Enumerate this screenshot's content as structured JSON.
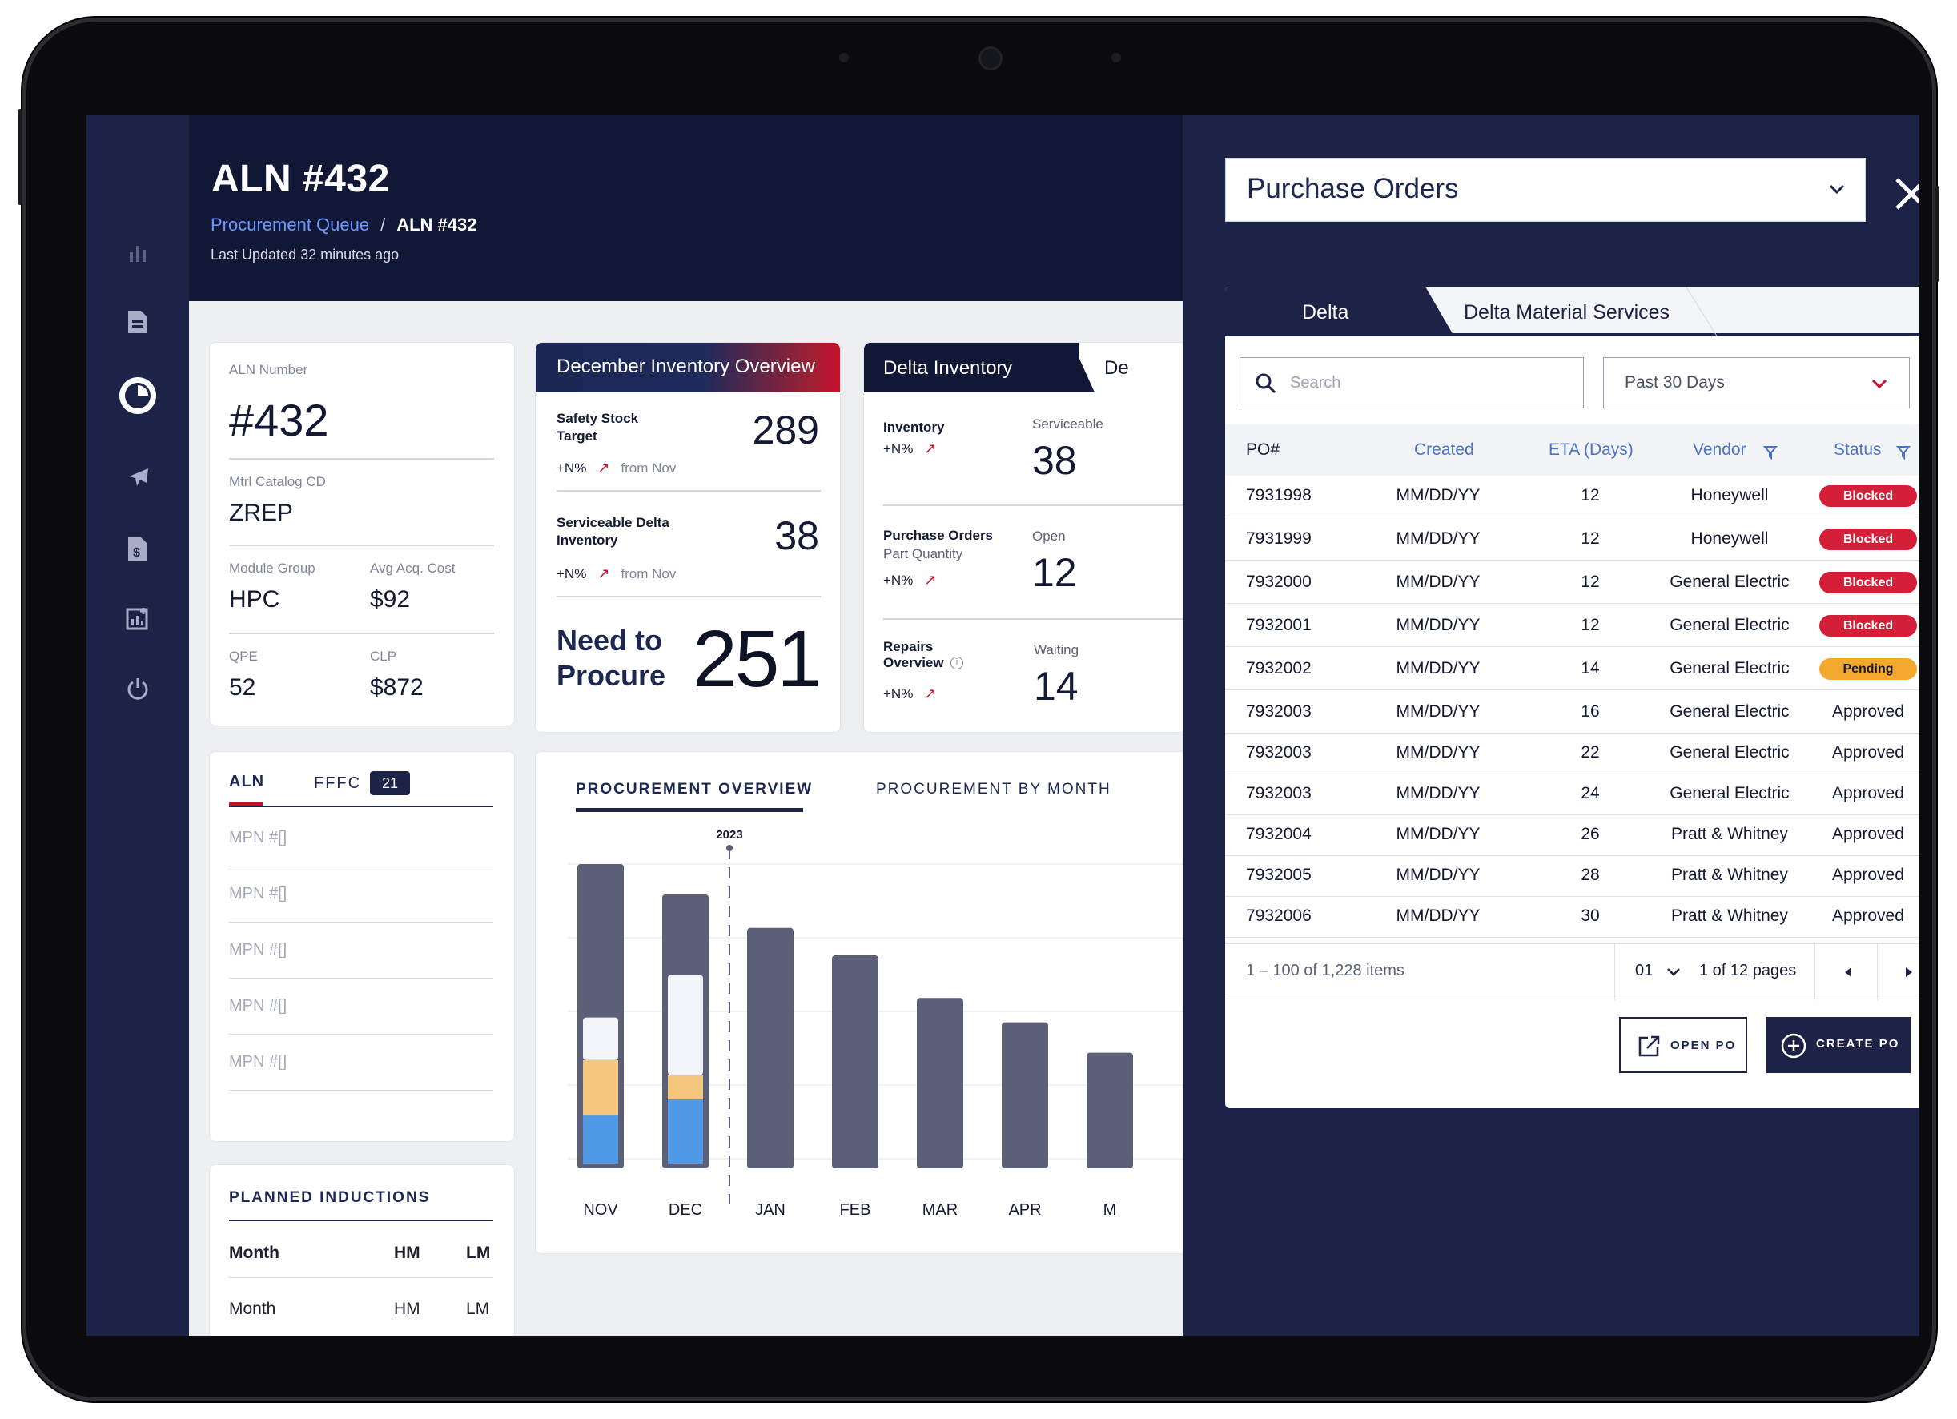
{
  "header": {
    "title": "ALN #432",
    "breadcrumb": {
      "parent": "Procurement Queue",
      "separator": "/",
      "current": "ALN #432"
    },
    "last_updated": "Last Updated 32 minutes ago"
  },
  "nav": {
    "icons": [
      "bar-chart-icon",
      "document-icon",
      "pie-chart-icon",
      "airplane-icon",
      "invoice-icon",
      "add-report-icon",
      "power-icon"
    ],
    "active": "pie-chart-icon"
  },
  "aln_card": {
    "aln_label": "ALN Number",
    "aln_value": "#432",
    "mtrl_label": "Mtrl Catalog CD",
    "mtrl_value": "ZREP",
    "module_label": "Module Group",
    "module_value": "HPC",
    "avg_label": "Avg Acq. Cost",
    "avg_value": "$92",
    "qpe_label": "QPE",
    "qpe_value": "52",
    "clp_label": "CLP",
    "clp_value": "$872"
  },
  "dec_inventory": {
    "title": "December Inventory Overview",
    "safety_label": "Safety Stock Target",
    "safety_value": "289",
    "serviceable_label": "Serviceable Delta Inventory",
    "serviceable_value": "38",
    "trend": "+N%",
    "trend_from": "from Nov",
    "need_label": "Need to Procure",
    "need_value": "251"
  },
  "delta_inventory": {
    "tab": "Delta Inventory",
    "tab_partial": "De",
    "inventory_label": "Inventory",
    "serviceable_label": "Serviceable",
    "serviceable_value": "38",
    "po_label": "Purchase Orders",
    "po_sub": "Part Quantity",
    "open_label": "Open",
    "open_value": "12",
    "repairs_label": "Repairs Overview",
    "waiting_label": "Waiting",
    "waiting_value": "14",
    "trend": "+N%"
  },
  "aln_tabs": {
    "tab_aln": "ALN",
    "tab_ffc": "FFFC",
    "ffc_count": "21",
    "items": [
      "MPN #[]",
      "MPN #[]",
      "MPN #[]",
      "MPN #[]",
      "MPN #[]"
    ]
  },
  "inductions": {
    "title": "PLANNED INDUCTIONS",
    "header": {
      "month": "Month",
      "hm": "HM",
      "lm": "LM"
    },
    "row": {
      "month": "Month",
      "hm": "HM",
      "lm": "LM"
    }
  },
  "chart_tabs": {
    "overview": "PROCUREMENT OVERVIEW",
    "by_month": "PROCUREMENT BY MONTH"
  },
  "chart_data": {
    "type": "bar",
    "marker_label": "2023",
    "categories": [
      "NOV",
      "DEC",
      "JAN",
      "FEB",
      "MAR",
      "APR",
      "M"
    ],
    "ylim": [
      0,
      100
    ],
    "series": [
      {
        "values": [
          100,
          90,
          79,
          70,
          56,
          48,
          38
        ]
      }
    ],
    "stacks": [
      {
        "category": "NOV",
        "blue": 16,
        "amber": 18,
        "white": 14
      },
      {
        "category": "DEC",
        "blue": 21,
        "amber": 8,
        "white": 33
      }
    ],
    "colors": {
      "bar": "#5c5f78",
      "blue": "#4f99e6",
      "amber": "#f3c77e",
      "white": "#f4f5fa"
    }
  },
  "purchase_orders": {
    "dropdown": "Purchase Orders",
    "tabs": [
      "Delta",
      "Delta Material Services"
    ],
    "search_placeholder": "Search",
    "range": "Past 30 Days",
    "columns": [
      "PO#",
      "Created",
      "ETA (Days)",
      "Vendor",
      "Status"
    ],
    "rows": [
      {
        "po": "7931998",
        "created": "MM/DD/YY",
        "eta": "12",
        "vendor": "Honeywell",
        "status": "Blocked"
      },
      {
        "po": "7931999",
        "created": "MM/DD/YY",
        "eta": "12",
        "vendor": "Honeywell",
        "status": "Blocked"
      },
      {
        "po": "7932000",
        "created": "MM/DD/YY",
        "eta": "12",
        "vendor": "General Electric",
        "status": "Blocked"
      },
      {
        "po": "7932001",
        "created": "MM/DD/YY",
        "eta": "12",
        "vendor": "General Electric",
        "status": "Blocked"
      },
      {
        "po": "7932002",
        "created": "MM/DD/YY",
        "eta": "14",
        "vendor": "General Electric",
        "status": "Pending"
      },
      {
        "po": "7932003",
        "created": "MM/DD/YY",
        "eta": "16",
        "vendor": "General Electric",
        "status": "Approved"
      },
      {
        "po": "7932003",
        "created": "MM/DD/YY",
        "eta": "22",
        "vendor": "General Electric",
        "status": "Approved"
      },
      {
        "po": "7932003",
        "created": "MM/DD/YY",
        "eta": "24",
        "vendor": "General Electric",
        "status": "Approved"
      },
      {
        "po": "7932004",
        "created": "MM/DD/YY",
        "eta": "26",
        "vendor": "Pratt & Whitney",
        "status": "Approved"
      },
      {
        "po": "7932005",
        "created": "MM/DD/YY",
        "eta": "28",
        "vendor": "Pratt & Whitney",
        "status": "Approved"
      },
      {
        "po": "7932006",
        "created": "MM/DD/YY",
        "eta": "30",
        "vendor": "Pratt & Whitney",
        "status": "Approved"
      }
    ],
    "pagination": {
      "items": "1 – 100 of 1,228 items",
      "page": "01",
      "pages": "1 of 12 pages"
    },
    "open_btn": "OPEN PO",
    "create_btn": "CREATE PO",
    "status_colors": {
      "Blocked": "#d31f37",
      "Pending": "#f4a92e"
    }
  }
}
